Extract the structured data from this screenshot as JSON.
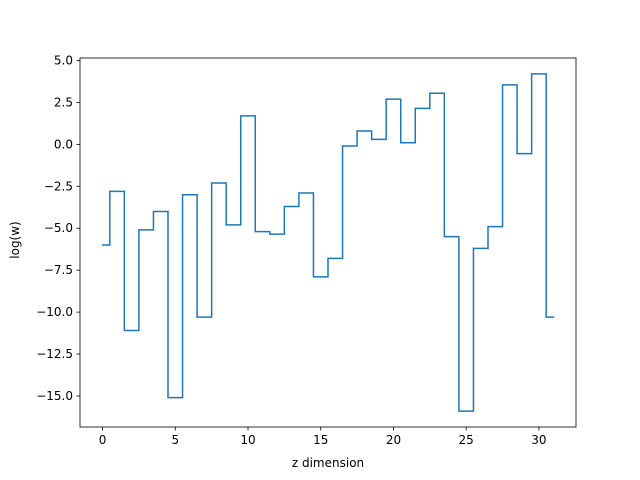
{
  "chart_data": {
    "type": "line",
    "drawstyle": "steps-mid",
    "title": "",
    "xlabel": "z dimension",
    "ylabel": "log(w)",
    "xlim": [
      -1.55,
      32.55
    ],
    "ylim": [
      -16.85,
      5.15
    ],
    "xticks": [
      0,
      5,
      10,
      15,
      20,
      25,
      30
    ],
    "xtick_labels": [
      "0",
      "5",
      "10",
      "15",
      "20",
      "25",
      "30"
    ],
    "yticks": [
      5.0,
      2.5,
      0.0,
      -2.5,
      -5.0,
      -7.5,
      -10.0,
      -12.5,
      -15.0
    ],
    "ytick_labels": [
      "5.0",
      "2.5",
      "0.0",
      "−2.5",
      "−5.0",
      "−7.5",
      "−10.0",
      "−12.5",
      "−15.0"
    ],
    "grid": false,
    "series": [
      {
        "color": "#1f77b4",
        "x": [
          0,
          1,
          2,
          3,
          4,
          5,
          6,
          7,
          8,
          9,
          10,
          11,
          12,
          13,
          14,
          15,
          16,
          17,
          18,
          19,
          20,
          21,
          22,
          23,
          24,
          25,
          26,
          27,
          28,
          29,
          30,
          31
        ],
        "y": [
          -6.0,
          -2.8,
          -11.1,
          -5.1,
          -4.0,
          -15.1,
          -3.0,
          -10.3,
          -2.3,
          -4.8,
          1.7,
          -5.2,
          -5.35,
          -3.7,
          -2.9,
          -7.9,
          -6.8,
          -0.1,
          0.8,
          0.3,
          2.7,
          0.1,
          2.15,
          3.05,
          -5.5,
          -15.9,
          -6.2,
          -4.9,
          3.55,
          -0.55,
          4.2,
          -10.3
        ]
      }
    ]
  }
}
